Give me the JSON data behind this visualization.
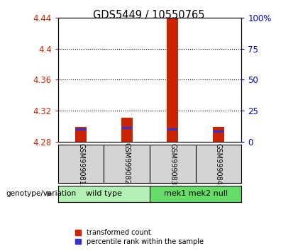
{
  "title": "GDS5449 / 10550765",
  "samples": [
    "GSM999081",
    "GSM999082",
    "GSM999083",
    "GSM999084"
  ],
  "group_labels": [
    "wild type",
    "mek1 mek2 null"
  ],
  "ylim": [
    4.28,
    4.44
  ],
  "yticks_left": [
    4.28,
    4.32,
    4.36,
    4.4,
    4.44
  ],
  "yticks_right": [
    0,
    25,
    50,
    75,
    100
  ],
  "red_bar_tops": [
    4.299,
    4.311,
    4.44,
    4.299
  ],
  "blue_bar_tops": [
    4.2945,
    4.296,
    4.2945,
    4.2915
  ],
  "bar_bottom": 4.28,
  "blue_thickness": 0.003,
  "bar_color_red": "#cc2200",
  "bar_color_blue": "#3333cc",
  "bar_width": 0.25,
  "sample_box_color": "#d3d3d3",
  "group_color_light": "#b3f0b3",
  "group_color_dark": "#66dd66",
  "genotype_label": "genotype/variation",
  "legend_red": "transformed count",
  "legend_blue": "percentile rank within the sample"
}
